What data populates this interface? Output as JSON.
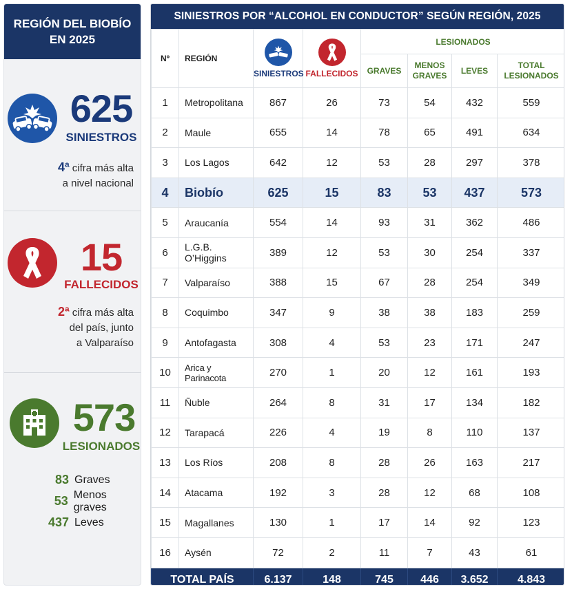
{
  "left": {
    "title_line1": "REGIÓN DEL BIOBÍO",
    "title_line2": "EN 2025",
    "siniestros": {
      "value": "625",
      "label": "SINIESTROS",
      "note_rank": "4ª",
      "note_line1": "cifra más alta",
      "note_line2": "a nivel nacional",
      "icon": "car-crash-icon",
      "color": "#1f56a8"
    },
    "fallecidos": {
      "value": "15",
      "label": "FALLECIDOS",
      "note_rank": "2ª",
      "note_line1": "cifra más alta",
      "note_line2": "del país, junto",
      "note_line3": "a Valparaíso",
      "icon": "ribbon-icon",
      "color": "#c2262e"
    },
    "lesionados": {
      "value": "573",
      "label": "LESIONADOS",
      "icon": "hospital-icon",
      "color": "#4a7a2e",
      "breakdown": [
        {
          "n": "83",
          "label": "Graves"
        },
        {
          "n": "53",
          "label": "Menos graves"
        },
        {
          "n": "437",
          "label": "Leves"
        }
      ]
    }
  },
  "table": {
    "title": "SINIESTROS POR “ALCOHOL EN CONDUCTOR” SEGÚN REGIÓN, 2025",
    "headers": {
      "no": "Nº",
      "region": "REGIÓN",
      "siniestros": "SINIESTROS",
      "fallecidos": "FALLECIDOS",
      "lesionados": "LESIONADOS",
      "graves": "GRAVES",
      "menos_graves_1": "MENOS",
      "menos_graves_2": "GRAVES",
      "leves": "LEVES",
      "total_1": "TOTAL",
      "total_2": "LESIONADOS"
    },
    "rows": [
      {
        "no": "1",
        "region": "Metropolitana",
        "siniestros": "867",
        "fallecidos": "26",
        "graves": "73",
        "menos_graves": "54",
        "leves": "432",
        "total": "559"
      },
      {
        "no": "2",
        "region": "Maule",
        "siniestros": "655",
        "fallecidos": "14",
        "graves": "78",
        "menos_graves": "65",
        "leves": "491",
        "total": "634"
      },
      {
        "no": "3",
        "region": "Los Lagos",
        "siniestros": "642",
        "fallecidos": "12",
        "graves": "53",
        "menos_graves": "28",
        "leves": "297",
        "total": "378"
      },
      {
        "no": "4",
        "region": "Biobío",
        "siniestros": "625",
        "fallecidos": "15",
        "graves": "83",
        "menos_graves": "53",
        "leves": "437",
        "total": "573"
      },
      {
        "no": "5",
        "region": "Araucanía",
        "siniestros": "554",
        "fallecidos": "14",
        "graves": "93",
        "menos_graves": "31",
        "leves": "362",
        "total": "486"
      },
      {
        "no": "6",
        "region": "L.G.B. O’Higgins",
        "siniestros": "389",
        "fallecidos": "12",
        "graves": "53",
        "menos_graves": "30",
        "leves": "254",
        "total": "337"
      },
      {
        "no": "7",
        "region": "Valparaíso",
        "siniestros": "388",
        "fallecidos": "15",
        "graves": "67",
        "menos_graves": "28",
        "leves": "254",
        "total": "349"
      },
      {
        "no": "8",
        "region": "Coquimbo",
        "siniestros": "347",
        "fallecidos": "9",
        "graves": "38",
        "menos_graves": "38",
        "leves": "183",
        "total": "259"
      },
      {
        "no": "9",
        "region": "Antofagasta",
        "siniestros": "308",
        "fallecidos": "4",
        "graves": "53",
        "menos_graves": "23",
        "leves": "171",
        "total": "247"
      },
      {
        "no": "10",
        "region": "Arica y Parinacota",
        "siniestros": "270",
        "fallecidos": "1",
        "graves": "20",
        "menos_graves": "12",
        "leves": "161",
        "total": "193"
      },
      {
        "no": "11",
        "region": "Ñuble",
        "siniestros": "264",
        "fallecidos": "8",
        "graves": "31",
        "menos_graves": "17",
        "leves": "134",
        "total": "182"
      },
      {
        "no": "12",
        "region": "Tarapacá",
        "siniestros": "226",
        "fallecidos": "4",
        "graves": "19",
        "menos_graves": "8",
        "leves": "110",
        "total": "137"
      },
      {
        "no": "13",
        "region": "Los Ríos",
        "siniestros": "208",
        "fallecidos": "8",
        "graves": "28",
        "menos_graves": "26",
        "leves": "163",
        "total": "217"
      },
      {
        "no": "14",
        "region": "Atacama",
        "siniestros": "192",
        "fallecidos": "3",
        "graves": "28",
        "menos_graves": "12",
        "leves": "68",
        "total": "108"
      },
      {
        "no": "15",
        "region": "Magallanes",
        "siniestros": "130",
        "fallecidos": "1",
        "graves": "17",
        "menos_graves": "14",
        "leves": "92",
        "total": "123"
      },
      {
        "no": "16",
        "region": "Aysén",
        "siniestros": "72",
        "fallecidos": "2",
        "graves": "11",
        "menos_graves": "7",
        "leves": "43",
        "total": "61"
      }
    ],
    "highlight_row": "4",
    "total": {
      "label": "TOTAL PAÍS",
      "siniestros": "6.137",
      "fallecidos": "148",
      "graves": "745",
      "menos_graves": "446",
      "leves": "3.652",
      "total": "4.843"
    }
  }
}
